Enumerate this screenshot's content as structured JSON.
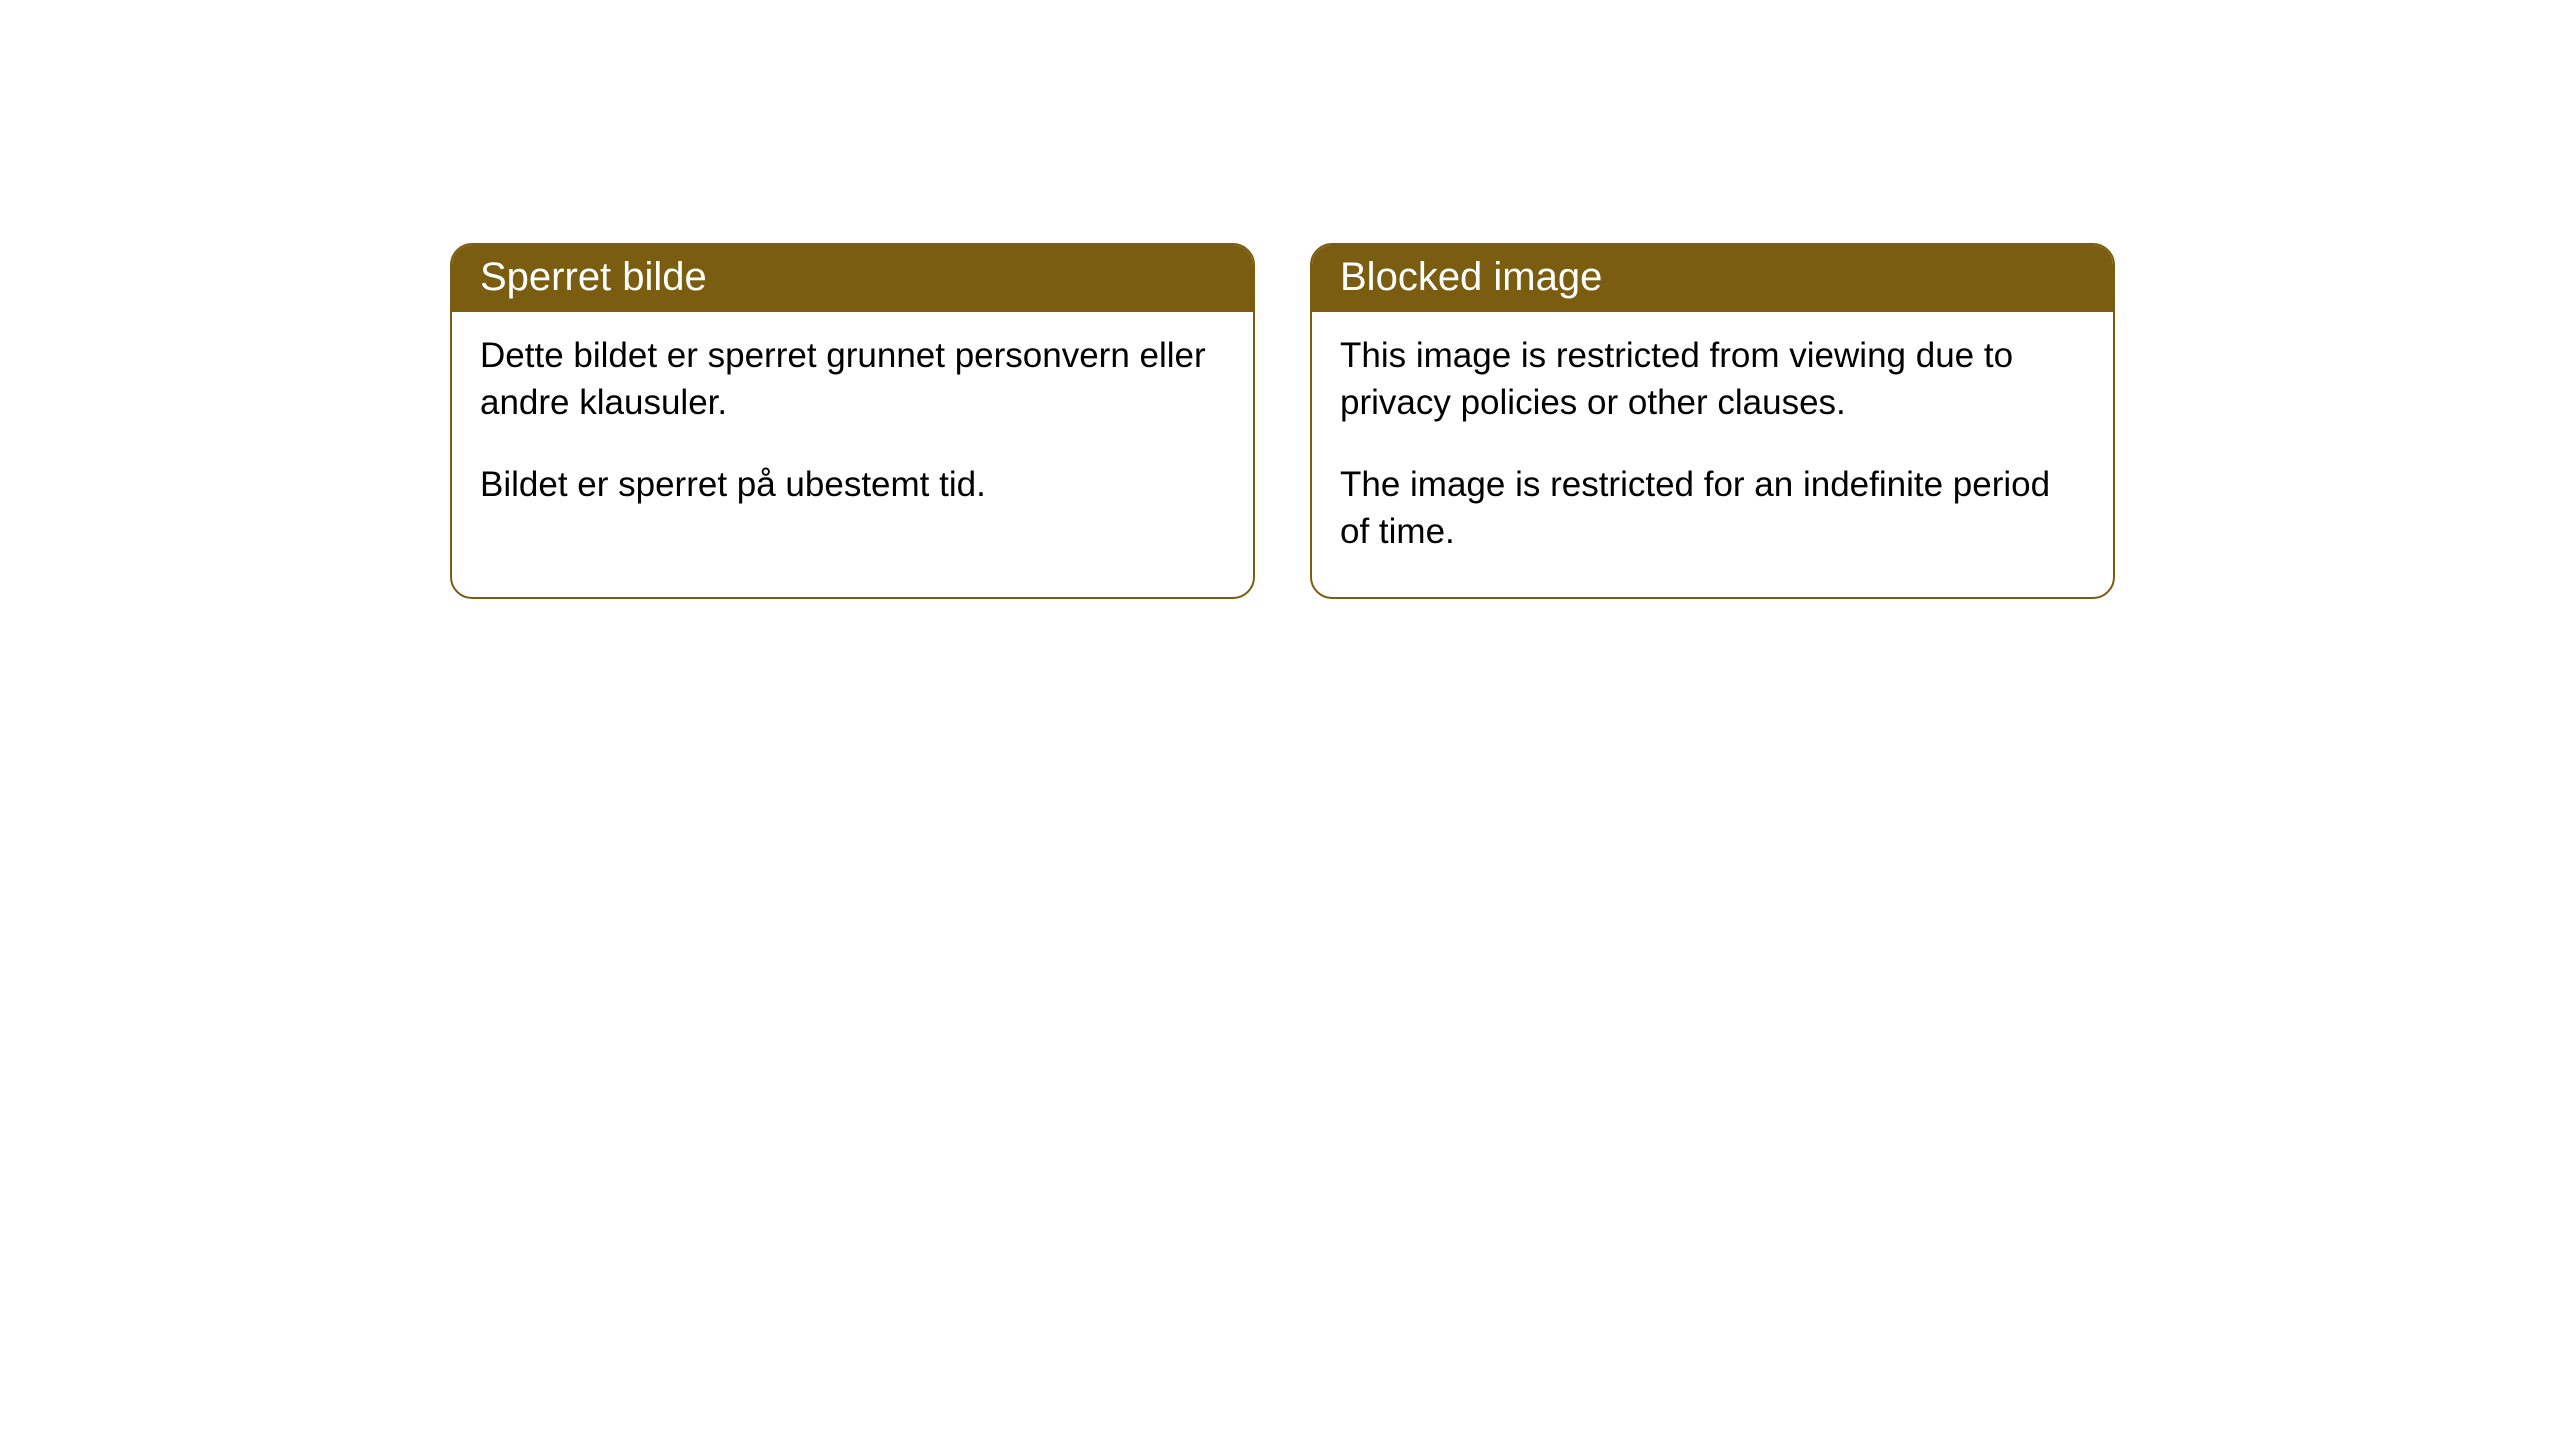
{
  "cards": [
    {
      "title": "Sperret bilde",
      "paragraph1": "Dette bildet er sperret grunnet personvern eller andre klausuler.",
      "paragraph2": "Bildet er sperret på ubestemt tid."
    },
    {
      "title": "Blocked image",
      "paragraph1": "This image is restricted from viewing due to privacy policies or other clauses.",
      "paragraph2": "The image is restricted for an indefinite period of time."
    }
  ],
  "style": {
    "header_background": "#7a5d10",
    "header_text_color": "#ffffff",
    "card_border_color": "#7a5d10",
    "card_background": "#ffffff",
    "body_text_color": "#000000",
    "page_background": "#ffffff",
    "border_radius": 22,
    "title_fontsize": 40,
    "body_fontsize": 35
  }
}
